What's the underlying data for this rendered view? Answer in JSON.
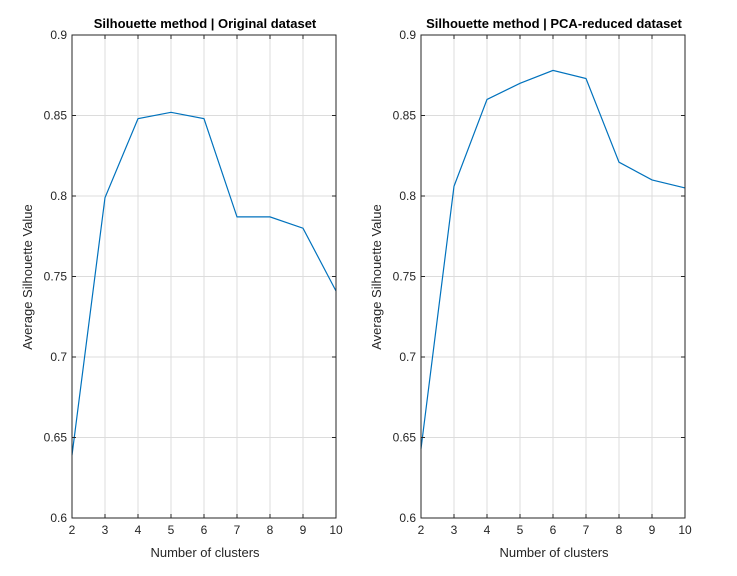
{
  "figure": {
    "colors": {
      "line": "#0072bd",
      "grid": "#dcdcdc",
      "axis": "#262626",
      "background": "#ffffff"
    }
  },
  "chart_data": [
    {
      "type": "line",
      "title": "Silhouette method | Original dataset",
      "xlabel": "Number of clusters",
      "ylabel": "Average Silhouette Value",
      "xlim": [
        2,
        10
      ],
      "ylim": [
        0.6,
        0.9
      ],
      "xticks": [
        "2",
        "3",
        "4",
        "5",
        "6",
        "7",
        "8",
        "9",
        "10"
      ],
      "yticks": [
        "0.6",
        "0.65",
        "0.7",
        "0.75",
        "0.8",
        "0.85",
        "0.9"
      ],
      "grid": true,
      "x": [
        2,
        3,
        4,
        5,
        6,
        7,
        8,
        9,
        10
      ],
      "series": [
        {
          "values": [
            0.639,
            0.799,
            0.848,
            0.852,
            0.848,
            0.787,
            0.787,
            0.78,
            0.741
          ]
        }
      ]
    },
    {
      "type": "line",
      "title": "Silhouette method | PCA-reduced dataset",
      "xlabel": "Number of clusters",
      "ylabel": "Average Silhouette Value",
      "xlim": [
        2,
        10
      ],
      "ylim": [
        0.6,
        0.9
      ],
      "xticks": [
        "2",
        "3",
        "4",
        "5",
        "6",
        "7",
        "8",
        "9",
        "10"
      ],
      "yticks": [
        "0.6",
        "0.65",
        "0.7",
        "0.75",
        "0.8",
        "0.85",
        "0.9"
      ],
      "grid": true,
      "x": [
        2,
        3,
        4,
        5,
        6,
        7,
        8,
        9,
        10
      ],
      "series": [
        {
          "values": [
            0.643,
            0.806,
            0.86,
            0.87,
            0.878,
            0.873,
            0.821,
            0.81,
            0.805
          ]
        }
      ]
    }
  ]
}
